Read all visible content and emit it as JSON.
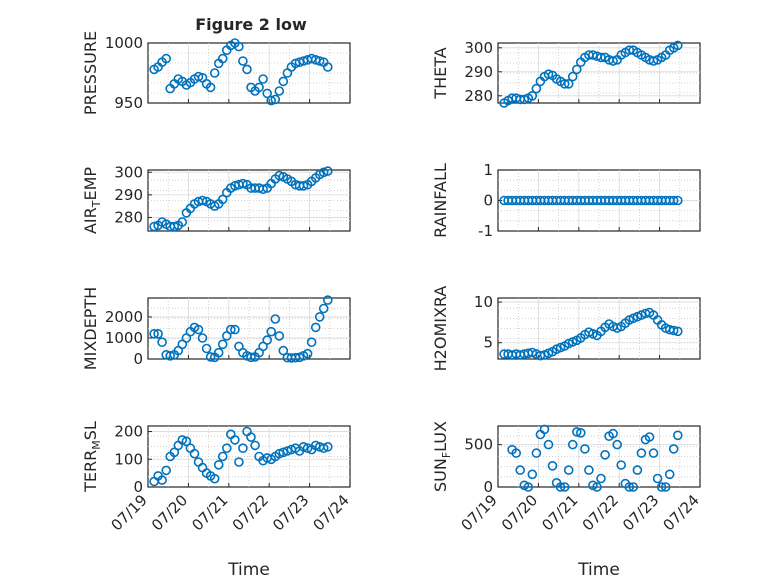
{
  "figure": {
    "title": "Figure 2 low"
  },
  "chart_data": [
    {
      "type": "scatter",
      "id": "pressure",
      "ylabel": "PRESSURE",
      "ylim": [
        950,
        1000
      ],
      "yticks": [
        950,
        1000
      ],
      "ytick_labels": [
        "950",
        "1000"
      ],
      "xlim": [
        0,
        5
      ],
      "xlabel": "",
      "xtick_labels": [],
      "x": [
        0.15,
        0.25,
        0.35,
        0.45,
        0.55,
        0.65,
        0.75,
        0.85,
        0.95,
        1.05,
        1.15,
        1.25,
        1.35,
        1.45,
        1.55,
        1.65,
        1.75,
        1.85,
        1.95,
        2.05,
        2.15,
        2.25,
        2.35,
        2.45,
        2.55,
        2.65,
        2.75,
        2.85,
        2.95,
        3.05,
        3.15,
        3.25,
        3.35,
        3.45,
        3.55,
        3.65,
        3.75,
        3.85,
        3.95,
        4.05,
        4.15,
        4.25,
        4.35,
        4.45
      ],
      "y": [
        978,
        980,
        984,
        987,
        962,
        966,
        970,
        968,
        965,
        967,
        970,
        972,
        971,
        966,
        963,
        975,
        983,
        987,
        994,
        998,
        1000,
        997,
        985,
        978,
        963,
        960,
        963,
        970,
        958,
        952,
        953,
        960,
        968,
        975,
        980,
        983,
        984,
        985,
        986,
        987,
        986,
        985,
        984,
        980
      ]
    },
    {
      "type": "scatter",
      "id": "theta",
      "ylabel": "THETA",
      "ylim": [
        277,
        302
      ],
      "yticks": [
        280,
        290,
        300
      ],
      "ytick_labels": [
        "280",
        "290",
        "300"
      ],
      "xlim": [
        0,
        5
      ],
      "xlabel": "",
      "xtick_labels": [],
      "x": [
        0.15,
        0.25,
        0.35,
        0.45,
        0.55,
        0.65,
        0.75,
        0.85,
        0.95,
        1.05,
        1.15,
        1.25,
        1.35,
        1.45,
        1.55,
        1.65,
        1.75,
        1.85,
        1.95,
        2.05,
        2.15,
        2.25,
        2.35,
        2.45,
        2.55,
        2.65,
        2.75,
        2.85,
        2.95,
        3.05,
        3.15,
        3.25,
        3.35,
        3.45,
        3.55,
        3.65,
        3.75,
        3.85,
        3.95,
        4.05,
        4.15,
        4.25,
        4.35,
        4.45
      ],
      "y": [
        277,
        278,
        279,
        279,
        278.5,
        278.5,
        279,
        280,
        283,
        286,
        288,
        289,
        288.5,
        287,
        286,
        285,
        285,
        288,
        291,
        294,
        296,
        297,
        297,
        296.5,
        296,
        296,
        295,
        294.5,
        295,
        297,
        298,
        299,
        299,
        298,
        297,
        296,
        295,
        294.5,
        295,
        296,
        297,
        299,
        300,
        301
      ]
    },
    {
      "type": "scatter",
      "id": "air-temp",
      "ylabel": "AIR_TEMP",
      "ylim": [
        274,
        301
      ],
      "yticks": [
        280,
        290,
        300
      ],
      "ytick_labels": [
        "280",
        "290",
        "300"
      ],
      "xlim": [
        0,
        5
      ],
      "xlabel": "",
      "xtick_labels": [],
      "x": [
        0.15,
        0.25,
        0.35,
        0.45,
        0.55,
        0.65,
        0.75,
        0.85,
        0.95,
        1.05,
        1.15,
        1.25,
        1.35,
        1.45,
        1.55,
        1.65,
        1.75,
        1.85,
        1.95,
        2.05,
        2.15,
        2.25,
        2.35,
        2.45,
        2.55,
        2.65,
        2.75,
        2.85,
        2.95,
        3.05,
        3.15,
        3.25,
        3.35,
        3.45,
        3.55,
        3.65,
        3.75,
        3.85,
        3.95,
        4.05,
        4.15,
        4.25,
        4.35,
        4.45
      ],
      "y": [
        276,
        276.5,
        278,
        277,
        276,
        276,
        276.5,
        278,
        282,
        284,
        286,
        287,
        287.5,
        287,
        286,
        285,
        286,
        288,
        291,
        293,
        294,
        294.5,
        295,
        294.5,
        293,
        293,
        293,
        292.5,
        293,
        295,
        297,
        298.5,
        298,
        297,
        296,
        294.5,
        294,
        294,
        294.5,
        296,
        297.5,
        299,
        300,
        300.5
      ]
    },
    {
      "type": "scatter",
      "id": "rainfall",
      "ylabel": "RAINFALL",
      "ylim": [
        -1,
        1
      ],
      "yticks": [
        -1,
        0,
        1
      ],
      "ytick_labels": [
        "-1",
        "0",
        "1"
      ],
      "xlim": [
        0,
        5
      ],
      "xlabel": "",
      "xtick_labels": [],
      "x": [
        0.15,
        0.25,
        0.35,
        0.45,
        0.55,
        0.65,
        0.75,
        0.85,
        0.95,
        1.05,
        1.15,
        1.25,
        1.35,
        1.45,
        1.55,
        1.65,
        1.75,
        1.85,
        1.95,
        2.05,
        2.15,
        2.25,
        2.35,
        2.45,
        2.55,
        2.65,
        2.75,
        2.85,
        2.95,
        3.05,
        3.15,
        3.25,
        3.35,
        3.45,
        3.55,
        3.65,
        3.75,
        3.85,
        3.95,
        4.05,
        4.15,
        4.25,
        4.35,
        4.45
      ],
      "y": [
        0,
        0,
        0,
        0,
        0,
        0,
        0,
        0,
        0,
        0,
        0,
        0,
        0,
        0,
        0,
        0,
        0,
        0,
        0,
        0,
        0,
        0,
        0,
        0,
        0,
        0,
        0,
        0,
        0,
        0,
        0,
        0,
        0,
        0,
        0,
        0,
        0,
        0,
        0,
        0,
        0,
        0,
        0,
        0
      ]
    },
    {
      "type": "scatter",
      "id": "mixdepth",
      "ylabel": "MIXDEPTH",
      "ylim": [
        0,
        2900
      ],
      "yticks": [
        0,
        1000,
        2000
      ],
      "ytick_labels": [
        "0",
        "1000",
        "2000"
      ],
      "xlim": [
        0,
        5
      ],
      "xlabel": "",
      "xtick_labels": [],
      "x": [
        0.15,
        0.25,
        0.35,
        0.45,
        0.55,
        0.65,
        0.75,
        0.85,
        0.95,
        1.05,
        1.15,
        1.25,
        1.35,
        1.45,
        1.55,
        1.65,
        1.75,
        1.85,
        1.95,
        2.05,
        2.15,
        2.25,
        2.35,
        2.45,
        2.55,
        2.65,
        2.75,
        2.85,
        2.95,
        3.05,
        3.15,
        3.25,
        3.35,
        3.45,
        3.55,
        3.65,
        3.75,
        3.85,
        3.95,
        4.05,
        4.15,
        4.25,
        4.35,
        4.45
      ],
      "y": [
        1200,
        1200,
        800,
        200,
        150,
        200,
        400,
        700,
        1000,
        1300,
        1500,
        1400,
        1000,
        500,
        100,
        80,
        300,
        700,
        1100,
        1400,
        1400,
        600,
        300,
        150,
        80,
        100,
        300,
        600,
        900,
        1300,
        1900,
        1100,
        400,
        60,
        50,
        60,
        80,
        150,
        250,
        800,
        1500,
        2000,
        2400,
        2800
      ]
    },
    {
      "type": "scatter",
      "id": "h2omixra",
      "ylabel": "H2OMIXRA",
      "ylim": [
        3,
        10.5
      ],
      "yticks": [
        5,
        10
      ],
      "ytick_labels": [
        "5",
        "10"
      ],
      "xlim": [
        0,
        5
      ],
      "xlabel": "",
      "xtick_labels": [],
      "x": [
        0.15,
        0.25,
        0.35,
        0.45,
        0.55,
        0.65,
        0.75,
        0.85,
        0.95,
        1.05,
        1.15,
        1.25,
        1.35,
        1.45,
        1.55,
        1.65,
        1.75,
        1.85,
        1.95,
        2.05,
        2.15,
        2.25,
        2.35,
        2.45,
        2.55,
        2.65,
        2.75,
        2.85,
        2.95,
        3.05,
        3.15,
        3.25,
        3.35,
        3.45,
        3.55,
        3.65,
        3.75,
        3.85,
        3.95,
        4.05,
        4.15,
        4.25,
        4.35,
        4.45
      ],
      "y": [
        3.6,
        3.6,
        3.5,
        3.6,
        3.5,
        3.6,
        3.7,
        3.8,
        3.6,
        3.4,
        3.5,
        3.7,
        3.9,
        4.2,
        4.4,
        4.6,
        4.9,
        5.1,
        5.3,
        5.6,
        6.0,
        6.3,
        6.1,
        5.9,
        6.4,
        6.9,
        7.3,
        7.0,
        6.8,
        7.0,
        7.4,
        7.8,
        8.0,
        8.2,
        8.4,
        8.6,
        8.7,
        8.4,
        7.8,
        7.2,
        6.8,
        6.6,
        6.5,
        6.4
      ]
    },
    {
      "type": "scatter",
      "id": "terr-msl",
      "ylabel": "TERR_MSL",
      "ylim": [
        0,
        220
      ],
      "yticks": [
        0,
        100,
        200
      ],
      "ytick_labels": [
        "0",
        "100",
        "200"
      ],
      "xlim": [
        0,
        5
      ],
      "xlabel": "Time",
      "xticks": [
        0,
        1,
        2,
        3,
        4,
        5
      ],
      "xtick_labels": [
        "07/19",
        "07/20",
        "07/21",
        "07/22",
        "07/23",
        "07/24"
      ],
      "x": [
        0.15,
        0.25,
        0.35,
        0.45,
        0.55,
        0.65,
        0.75,
        0.85,
        0.95,
        1.05,
        1.15,
        1.25,
        1.35,
        1.45,
        1.55,
        1.65,
        1.75,
        1.85,
        1.95,
        2.05,
        2.15,
        2.25,
        2.35,
        2.45,
        2.55,
        2.65,
        2.75,
        2.85,
        2.95,
        3.05,
        3.15,
        3.25,
        3.35,
        3.45,
        3.55,
        3.65,
        3.75,
        3.85,
        3.95,
        4.05,
        4.15,
        4.25,
        4.35,
        4.45
      ],
      "y": [
        20,
        40,
        25,
        60,
        110,
        125,
        150,
        170,
        165,
        140,
        120,
        90,
        70,
        50,
        40,
        30,
        80,
        110,
        140,
        190,
        170,
        90,
        140,
        200,
        180,
        150,
        110,
        95,
        105,
        100,
        110,
        120,
        125,
        130,
        135,
        140,
        130,
        145,
        140,
        135,
        150,
        145,
        140,
        145
      ]
    },
    {
      "type": "scatter",
      "id": "sun-flux",
      "ylabel": "SUN_FLUX",
      "ylim": [
        0,
        720
      ],
      "yticks": [
        0,
        500
      ],
      "ytick_labels": [
        "0",
        "500"
      ],
      "xlim": [
        0,
        5
      ],
      "xlabel": "Time",
      "xticks": [
        0,
        1,
        2,
        3,
        4,
        5
      ],
      "xtick_labels": [
        "07/19",
        "07/20",
        "07/21",
        "07/22",
        "07/23",
        "07/24"
      ],
      "x": [
        0.35,
        0.45,
        0.55,
        0.65,
        0.75,
        0.85,
        0.95,
        1.05,
        1.15,
        1.25,
        1.35,
        1.45,
        1.55,
        1.65,
        1.75,
        1.85,
        1.95,
        2.05,
        2.15,
        2.25,
        2.35,
        2.45,
        2.55,
        2.65,
        2.75,
        2.85,
        2.95,
        3.05,
        3.15,
        3.25,
        3.35,
        3.45,
        3.55,
        3.65,
        3.75,
        3.85,
        3.95,
        4.05,
        4.15,
        4.25,
        4.35,
        4.45
      ],
      "y": [
        440,
        400,
        200,
        20,
        0,
        150,
        400,
        620,
        680,
        500,
        250,
        50,
        0,
        0,
        200,
        500,
        650,
        640,
        450,
        200,
        20,
        0,
        100,
        380,
        600,
        630,
        500,
        260,
        40,
        0,
        0,
        200,
        400,
        560,
        590,
        400,
        100,
        0,
        0,
        150,
        450,
        610
      ]
    }
  ]
}
